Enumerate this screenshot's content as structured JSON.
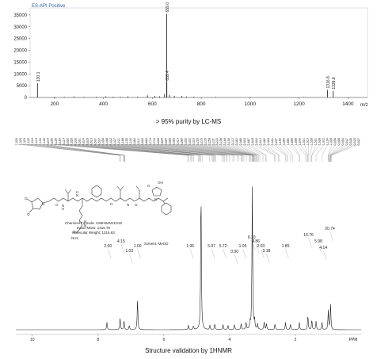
{
  "chart_data": [
    {
      "type": "bar",
      "title": "ES-API Positive",
      "xlabel": "m/z",
      "ylabel": "",
      "xlim": [
        100,
        1480
      ],
      "ylim": [
        0,
        38000
      ],
      "grid": false,
      "x_ticks": [
        200,
        400,
        600,
        800,
        1000,
        1200,
        1400
      ],
      "y_ticks": [
        0,
        5000,
        10000,
        15000,
        20000,
        25000,
        30000,
        35000
      ],
      "peaks": [
        {
          "mz": 130.1,
          "intensity": 6000,
          "label": "130.1"
        },
        {
          "mz": 200,
          "intensity": 300
        },
        {
          "mz": 240,
          "intensity": 250
        },
        {
          "mz": 280,
          "intensity": 400
        },
        {
          "mz": 320,
          "intensity": 250
        },
        {
          "mz": 370,
          "intensity": 300
        },
        {
          "mz": 410,
          "intensity": 500
        },
        {
          "mz": 440,
          "intensity": 350
        },
        {
          "mz": 470,
          "intensity": 300
        },
        {
          "mz": 500,
          "intensity": 450
        },
        {
          "mz": 540,
          "intensity": 350
        },
        {
          "mz": 580,
          "intensity": 900
        },
        {
          "mz": 610,
          "intensity": 600
        },
        {
          "mz": 630,
          "intensity": 500
        },
        {
          "mz": 650,
          "intensity": 1500
        },
        {
          "mz": 659.0,
          "intensity": 35500,
          "label": "659.0"
        },
        {
          "mz": 659.4,
          "intensity": 6500,
          "label": "659.4"
        },
        {
          "mz": 670,
          "intensity": 1100
        },
        {
          "mz": 690,
          "intensity": 700
        },
        {
          "mz": 720,
          "intensity": 600
        },
        {
          "mz": 740,
          "intensity": 400
        },
        {
          "mz": 770,
          "intensity": 350
        },
        {
          "mz": 860,
          "intensity": 250
        },
        {
          "mz": 1000,
          "intensity": 200
        },
        {
          "mz": 1220,
          "intensity": 200
        },
        {
          "mz": 1316.8,
          "intensity": 3200,
          "label": "1316.8"
        },
        {
          "mz": 1339.8,
          "intensity": 2800,
          "label": "1339.8"
        }
      ]
    },
    {
      "type": "line",
      "title": "",
      "xlabel": "PPM",
      "xlim": [
        10.5,
        0
      ],
      "x_ticks": [
        10,
        8,
        6,
        4,
        2
      ],
      "shift_list": [
        "7.330",
        "7.326",
        "7.323",
        "7.220",
        "7.216",
        "7.213",
        "7.193",
        "7.190",
        "5.270",
        "5.255",
        "5.180",
        "5.164",
        "5.114",
        "5.092",
        "4.956",
        "4.930",
        "4.901",
        "4.874",
        "4.829",
        "4.613",
        "4.547",
        "4.507",
        "4.496",
        "4.468",
        "4.442",
        "4.427",
        "4.221",
        "4.186",
        "4.155",
        "4.104",
        "4.084",
        "4.011",
        "3.900",
        "3.862",
        "3.774",
        "3.716",
        "3.656",
        "3.634",
        "3.594",
        "3.565",
        "3.490",
        "3.414",
        "3.380",
        "3.353",
        "3.322",
        "3.310",
        "3.293",
        "3.279",
        "3.276",
        "3.258",
        "3.237",
        "3.222",
        "3.198",
        "3.180",
        "3.150",
        "3.112",
        "3.081",
        "2.985",
        "2.903",
        "2.887",
        "2.643",
        "2.604",
        "2.514",
        "2.482",
        "2.300",
        "2.261",
        "2.237",
        "2.152",
        "2.084",
        "1.882",
        "1.868",
        "1.688",
        "1.640",
        "1.621",
        "1.610",
        "1.558",
        "1.501",
        "1.498",
        "1.372",
        "1.194",
        "1.006",
        "0.998",
        "0.966",
        "0.954",
        "0.947",
        "0.935",
        "0.920",
        "0.907"
      ],
      "formula_lines": [
        "Chemical Formula: C66H94N11O15",
        "Exact Mass: 1315.78",
        "Molecular Weight: 1316.63"
      ],
      "solvent": "Solvent: MeOD",
      "integrals": [
        {
          "label": "2.00",
          "ppm": 7.7
        },
        {
          "label": "4.15",
          "ppm": 7.3
        },
        {
          "label": "1.03",
          "ppm": 7.05
        },
        {
          "label": "1.00",
          "ppm": 6.8
        },
        {
          "label": "1.95",
          "ppm": 5.2
        },
        {
          "label": "5.97",
          "ppm": 4.55
        },
        {
          "label": "5.72",
          "ppm": 4.2
        },
        {
          "label": "0.90",
          "ppm": 3.85
        },
        {
          "label": "1.05",
          "ppm": 3.6
        },
        {
          "label": "6.10",
          "ppm": 3.33
        },
        {
          "label": "4.86",
          "ppm": 3.2
        },
        {
          "label": "2.03",
          "ppm": 3.05
        },
        {
          "label": "3.18",
          "ppm": 2.88
        },
        {
          "label": "1.85",
          "ppm": 2.3
        },
        {
          "label": "16.76",
          "ppm": 1.6
        },
        {
          "label": "5.98",
          "ppm": 1.3
        },
        {
          "label": "4.14",
          "ppm": 1.15
        },
        {
          "label": "20.74",
          "ppm": 0.95
        }
      ],
      "spectrum_peaks": [
        {
          "ppm": 7.73,
          "h": 0.05
        },
        {
          "ppm": 7.33,
          "h": 0.08
        },
        {
          "ppm": 7.21,
          "h": 0.06
        },
        {
          "ppm": 7.05,
          "h": 0.03
        },
        {
          "ppm": 6.8,
          "h": 0.21
        },
        {
          "ppm": 5.25,
          "h": 0.03
        },
        {
          "ppm": 5.1,
          "h": 0.025
        },
        {
          "ppm": 4.87,
          "h": 1.0
        },
        {
          "ppm": 4.6,
          "h": 0.03
        },
        {
          "ppm": 4.45,
          "h": 0.04
        },
        {
          "ppm": 4.2,
          "h": 0.035
        },
        {
          "ppm": 4.05,
          "h": 0.03
        },
        {
          "ppm": 3.85,
          "h": 0.035
        },
        {
          "ppm": 3.65,
          "h": 0.04
        },
        {
          "ppm": 3.5,
          "h": 0.05
        },
        {
          "ppm": 3.38,
          "h": 0.05
        },
        {
          "ppm": 3.31,
          "h": 0.98
        },
        {
          "ppm": 3.24,
          "h": 0.06
        },
        {
          "ppm": 3.15,
          "h": 0.04
        },
        {
          "ppm": 2.95,
          "h": 0.05
        },
        {
          "ppm": 2.88,
          "h": 0.04
        },
        {
          "ppm": 2.62,
          "h": 0.04
        },
        {
          "ppm": 2.3,
          "h": 0.05
        },
        {
          "ppm": 2.15,
          "h": 0.04
        },
        {
          "ppm": 1.88,
          "h": 0.05
        },
        {
          "ppm": 1.62,
          "h": 0.1
        },
        {
          "ppm": 1.5,
          "h": 0.07
        },
        {
          "ppm": 1.37,
          "h": 0.06
        },
        {
          "ppm": 1.19,
          "h": 0.05
        },
        {
          "ppm": 1.0,
          "h": 0.13
        },
        {
          "ppm": 0.93,
          "h": 0.18
        }
      ]
    }
  ],
  "captions": {
    "ms": "> 95% purity by LC-MS",
    "nmr": "Structure validation by 1HNMR"
  },
  "structure": {
    "nh2": "NH2",
    "o_labels": [
      "O",
      "O",
      "O",
      "O",
      "O",
      "O",
      "O",
      "O"
    ],
    "n_labels": [
      "N",
      "N",
      "N",
      "N",
      "N",
      "N"
    ],
    "h_labels": [
      "H",
      "H",
      "H",
      "H",
      "H"
    ],
    "oh_label": "OH"
  }
}
